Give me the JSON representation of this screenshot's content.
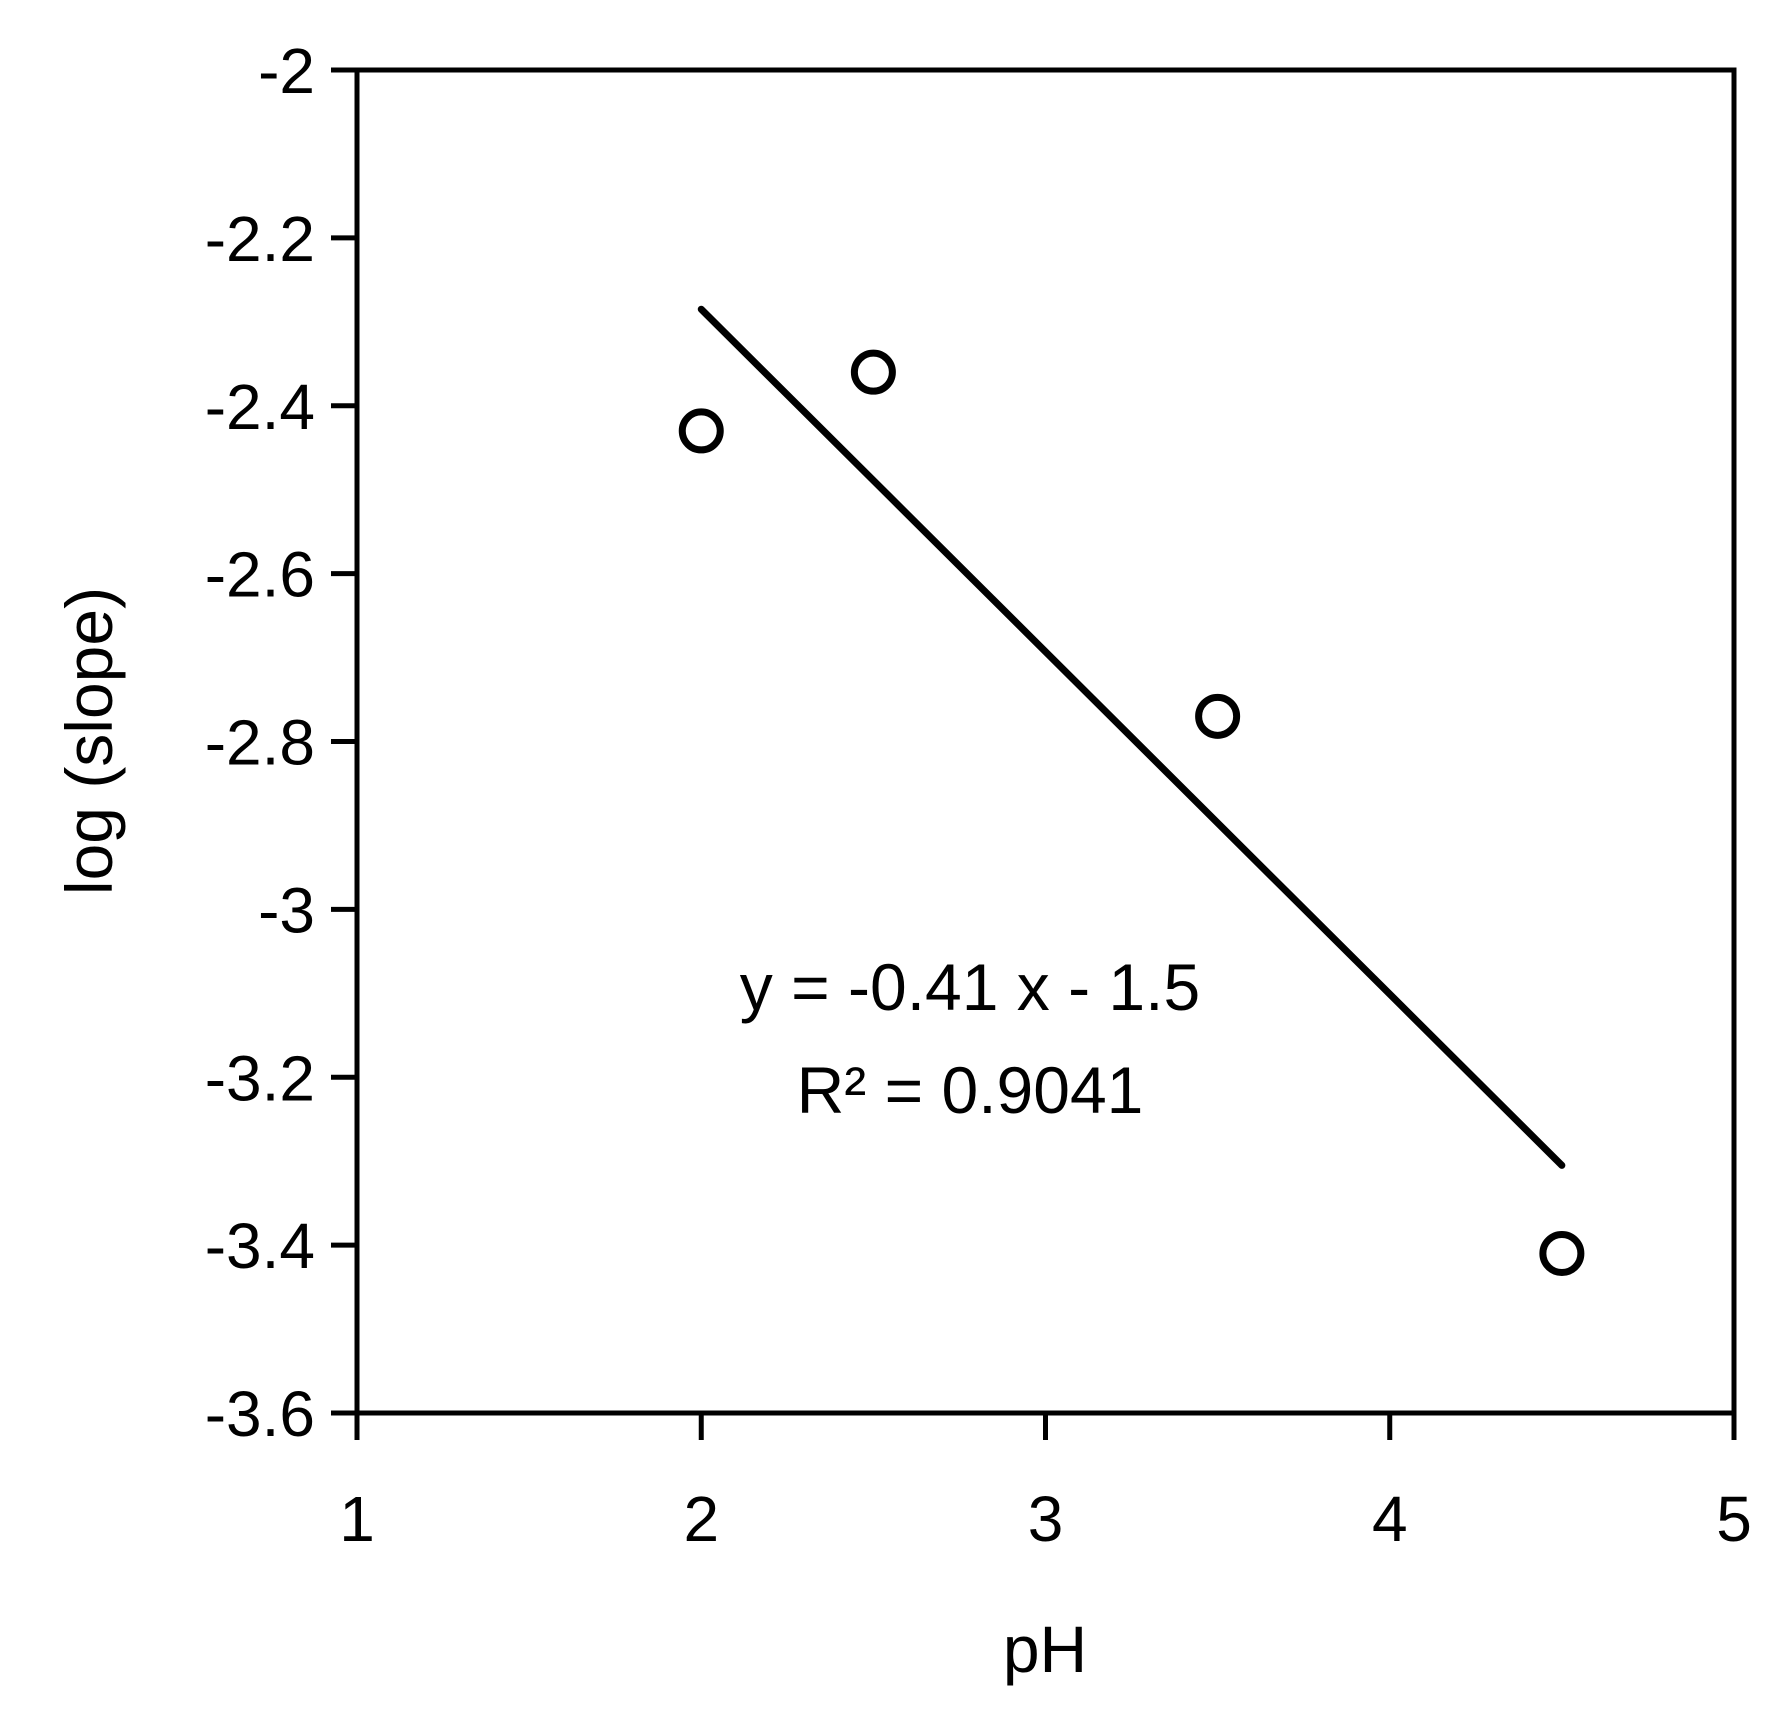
{
  "chart_data": {
    "type": "scatter",
    "title": "",
    "xlabel": "pH",
    "ylabel": "log (slope)",
    "xlim": [
      1,
      5
    ],
    "ylim": [
      -3.6,
      -2
    ],
    "x_ticks": [
      1,
      2,
      3,
      4,
      5
    ],
    "x_tick_labels": [
      "1",
      "2",
      "3",
      "4",
      "5"
    ],
    "y_ticks": [
      -2,
      -2.2,
      -2.4,
      -2.6,
      -2.8,
      -3,
      -3.2,
      -3.4,
      -3.6
    ],
    "y_tick_labels": [
      "-2",
      "-2.2",
      "-2.4",
      "-2.6",
      "-2.8",
      "-3",
      "-3.2",
      "-3.4",
      "-3.6"
    ],
    "grid": false,
    "legend": "none",
    "series": [
      {
        "marker": "open-circle",
        "x": [
          2,
          2.5,
          3.5,
          4.5
        ],
        "y": [
          -2.43,
          -2.36,
          -2.77,
          -3.41
        ]
      }
    ],
    "trendline": {
      "x": [
        2,
        4.5
      ],
      "y": [
        -2.285,
        -3.305
      ]
    },
    "annotations": {
      "equation": "y = -0.41 x - 1.5",
      "r_squared": "R² = 0.9041"
    },
    "colors": {
      "axis": "#000000",
      "marker": "#000000",
      "line": "#000000",
      "background": "#ffffff"
    }
  }
}
